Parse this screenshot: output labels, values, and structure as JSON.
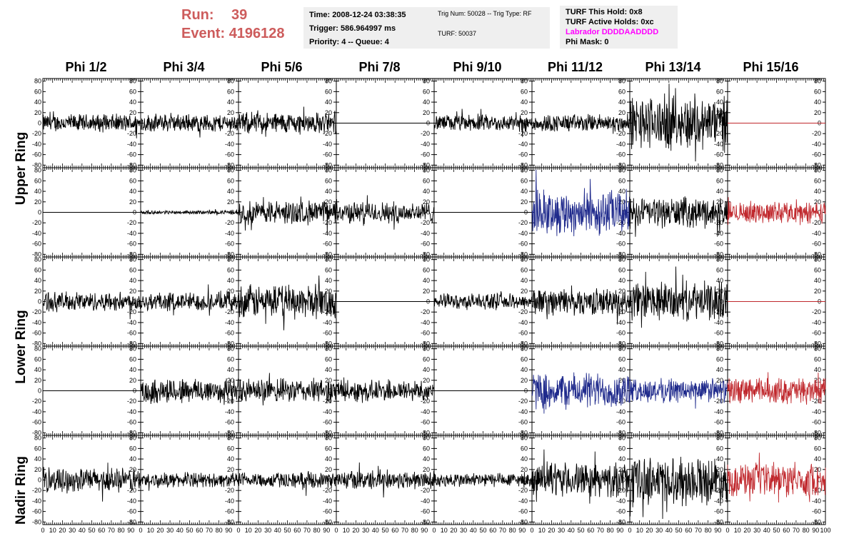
{
  "header": {
    "run_label": "Run:",
    "run_value": "39",
    "event_label": "Event:",
    "event_value": "4196128",
    "time": "Time: 2008-12-24 03:38:35",
    "trigger": "Trigger: 586.964997 ms",
    "priority": "Priority: 4 -- Queue: 4",
    "trig_num": "Trig Num: 50028 -- Trig Type: RF",
    "turf": "TURF: 50037",
    "turf_this_hold": "TURF This Hold: 0x8",
    "turf_active_holds": "TURF Active Holds: 0xc",
    "labrador": "Labrador DDDDAADDDD",
    "phi_mask": "Phi Mask: 0"
  },
  "columns": [
    "Phi 1/2",
    "Phi 3/4",
    "Phi 5/6",
    "Phi 7/8",
    "Phi 9/10",
    "Phi 11/12",
    "Phi 13/14",
    "Phi 15/16"
  ],
  "rings": [
    "Upper Ring",
    "Lower Ring",
    "Nadir Ring"
  ],
  "colors": {
    "title_red": "#cd5c5c",
    "black": "#000000",
    "blue": "#1f2a8c",
    "red": "#c0282d",
    "magenta": "#ff00ff"
  },
  "chart_data": {
    "type": "line",
    "description_of_grid": "5 rows x 8 columns of waveform panels",
    "ylim": [
      -85,
      85
    ],
    "yticks": [
      -80,
      -60,
      -40,
      -20,
      0,
      20,
      40,
      60,
      80
    ],
    "xlim": [
      0,
      100
    ],
    "xticks_labels": "0 10 20 30 40 50 60 70 80 90 100",
    "panels": [
      [
        {
          "amp": 15,
          "color": "black"
        },
        {
          "amp": 15,
          "color": "black"
        },
        {
          "amp": 18,
          "color": "black"
        },
        {
          "amp": 0,
          "color": "black"
        },
        {
          "amp": 14,
          "color": "black"
        },
        {
          "amp": 15,
          "color": "black"
        },
        {
          "amp": 45,
          "color": "black"
        },
        {
          "amp": 0,
          "color": "red"
        }
      ],
      [
        {
          "amp": 0,
          "color": "black"
        },
        {
          "amp": 3,
          "color": "black"
        },
        {
          "amp": 20,
          "color": "black"
        },
        {
          "amp": 18,
          "color": "black"
        },
        {
          "amp": 0,
          "color": "black"
        },
        {
          "amp": 38,
          "color": "blue"
        },
        {
          "amp": 25,
          "color": "black"
        },
        {
          "amp": 18,
          "color": "red"
        }
      ],
      [
        {
          "amp": 16,
          "color": "black"
        },
        {
          "amp": 16,
          "color": "black"
        },
        {
          "amp": 28,
          "color": "black"
        },
        {
          "amp": 0,
          "color": "black"
        },
        {
          "amp": 13,
          "color": "black"
        },
        {
          "amp": 22,
          "color": "black"
        },
        {
          "amp": 32,
          "color": "black"
        },
        {
          "amp": 0,
          "color": "red"
        }
      ],
      [
        {
          "amp": 0,
          "color": "black"
        },
        {
          "amp": 22,
          "color": "black"
        },
        {
          "amp": 20,
          "color": "black"
        },
        {
          "amp": 18,
          "color": "black"
        },
        {
          "amp": 0,
          "color": "black"
        },
        {
          "amp": 30,
          "color": "blue"
        },
        {
          "amp": 20,
          "color": "blue"
        },
        {
          "amp": 22,
          "color": "red"
        }
      ],
      [
        {
          "amp": 20,
          "color": "black"
        },
        {
          "amp": 12,
          "color": "black"
        },
        {
          "amp": 13,
          "color": "black"
        },
        {
          "amp": 16,
          "color": "black"
        },
        {
          "amp": 12,
          "color": "black"
        },
        {
          "amp": 28,
          "color": "black"
        },
        {
          "amp": 40,
          "color": "black"
        },
        {
          "amp": 28,
          "color": "red"
        }
      ]
    ]
  }
}
